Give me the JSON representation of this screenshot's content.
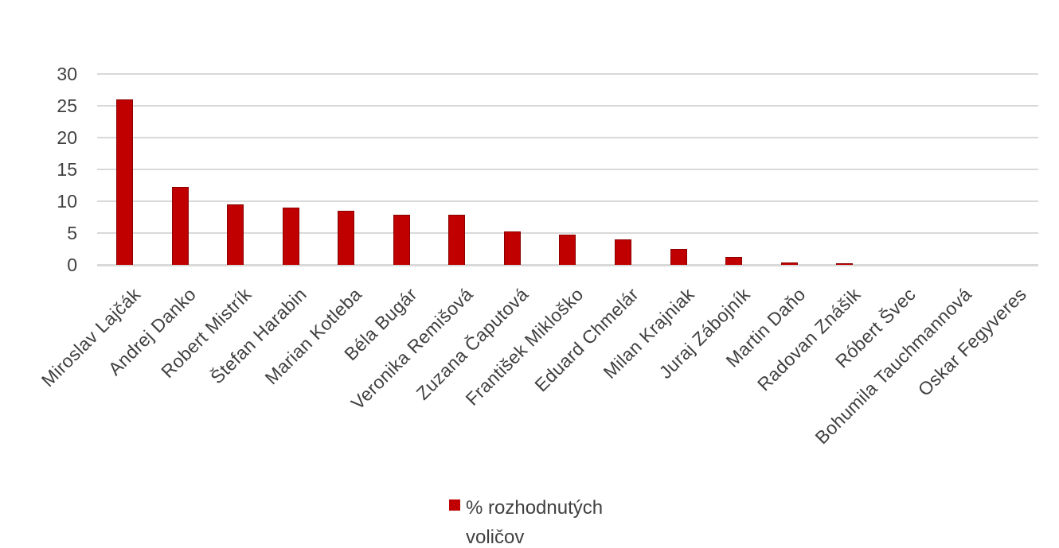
{
  "chart_data": {
    "type": "bar",
    "title": "",
    "categories": [
      "Miroslav Lajčák",
      "Andrej Danko",
      "Robert Mistrík",
      "Štefan Harabin",
      "Marian Kotleba",
      "Béla Bugár",
      "Veronika Remišová",
      "Zuzana Čaputová",
      "František Mikloško",
      "Eduard Chmelár",
      "Milan Krajniak",
      "Juraj Zábojník",
      "Martin Daňo",
      "Radovan Znášik",
      "Róbert Švec",
      "Bohumila Tauchmannová",
      "Oskar Fegyveres"
    ],
    "values": [
      26,
      12.2,
      9.5,
      9,
      8.5,
      7.9,
      7.9,
      5.2,
      4.8,
      4,
      2.5,
      1.2,
      0.4,
      0.3,
      0,
      0,
      0
    ],
    "xlabel": "",
    "ylabel": "",
    "ylim": [
      0,
      30
    ],
    "yticks": [
      0,
      5,
      10,
      15,
      20,
      25,
      30
    ],
    "grid": true,
    "legend_position": "bottom-center",
    "legend_label": "% rozhodnutých voličov",
    "colors": {
      "bar_fill": "#C00000",
      "bar_border": "#8B0000",
      "gridline": "#D9D9D9",
      "text": "#404040",
      "background": "#FFFFFF"
    }
  }
}
